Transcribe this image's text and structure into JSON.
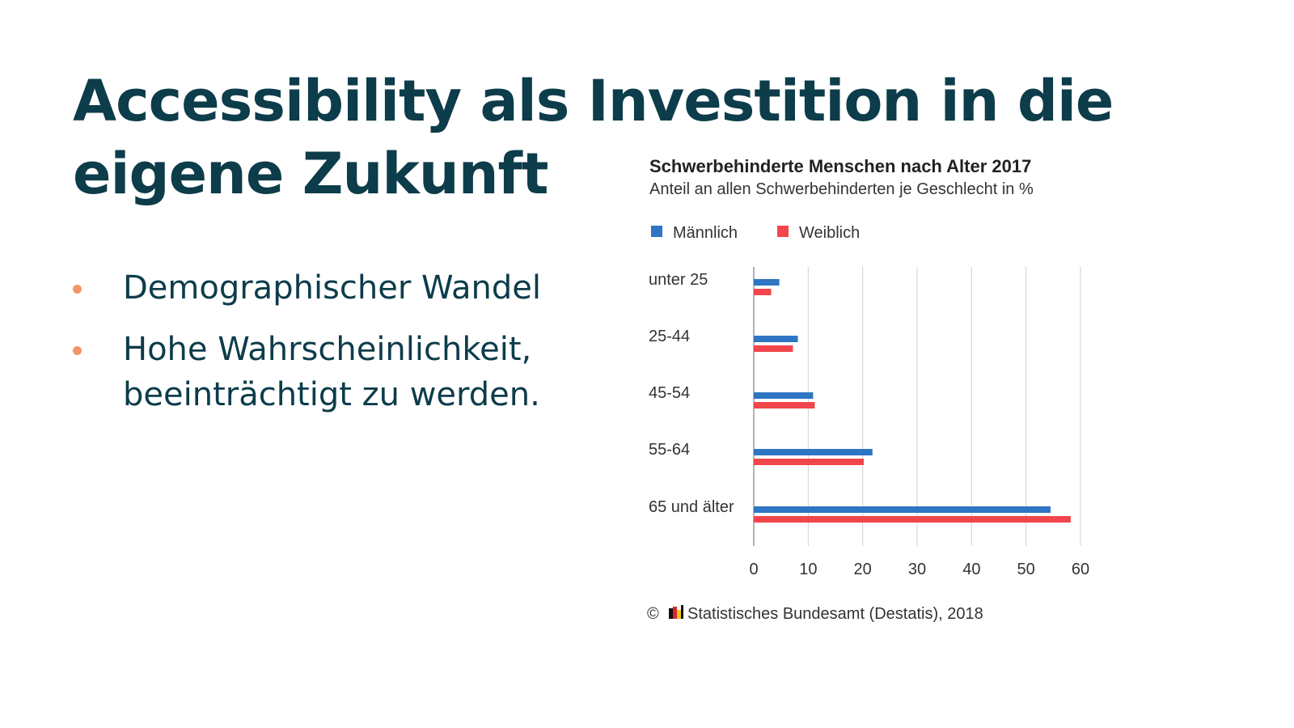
{
  "slide": {
    "title": "Accessibility als Investition in die eigene Zukunft",
    "bullets": [
      "Demographischer Wandel",
      "Hohe Wahrscheinlichkeit, beeinträchtigt zu werden."
    ],
    "colors": {
      "title": "#0d3c4a",
      "bullet_dot": "#f2966a"
    }
  },
  "chart_data": {
    "type": "bar",
    "orientation": "horizontal",
    "title": "Schwerbehinderte Menschen nach Alter 2017",
    "subtitle": "Anteil an allen Schwerbehinderten je Geschlecht  in %",
    "categories": [
      "unter 25",
      "25-44",
      "45-54",
      "55-64",
      "65 und älter"
    ],
    "series": [
      {
        "name": "Männlich",
        "color": "#2e75c3",
        "values": [
          4.7,
          8.1,
          10.9,
          21.8,
          54.5
        ]
      },
      {
        "name": "Weiblich",
        "color": "#f2454c",
        "values": [
          3.2,
          7.2,
          11.2,
          20.2,
          58.2
        ]
      }
    ],
    "xlim": [
      0,
      60
    ],
    "xticks": [
      "0",
      "10",
      "20",
      "30",
      "40",
      "50",
      "60"
    ],
    "grid": true,
    "legend_position": "top-left",
    "source": "© 🇩🇪 Statistisches Bundesamt (Destatis), 2018",
    "source_text": "Statistisches Bundesamt (Destatis), 2018"
  }
}
